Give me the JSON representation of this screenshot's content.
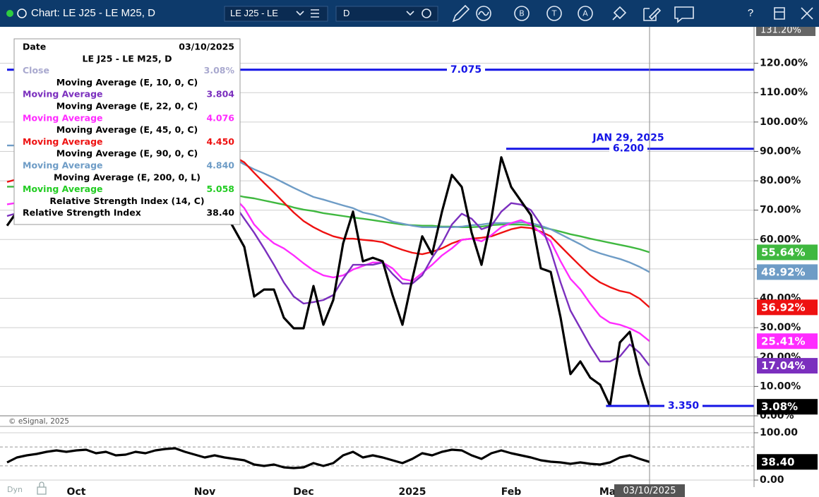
{
  "toolbar": {
    "title": "Chart: LE J25 - LE M25, D",
    "symbol": "LE J25 - LE",
    "interval": "D",
    "buttons": [
      "B",
      "T",
      "A"
    ],
    "help": "?"
  },
  "footer": {
    "mode": "Dyn",
    "copyright": "© eSignal, 2025"
  },
  "data_window": {
    "date_label": "Date",
    "date": "03/10/2025",
    "symbol": "LE J25 - LE M25, D",
    "rows": [
      {
        "label": "Close",
        "value": "3.08%",
        "color": "#a9a9cf"
      },
      {
        "title": "Moving Average (E, 10, 0, C)"
      },
      {
        "label": "Moving Average",
        "value": "3.804",
        "color": "#7b2fbe"
      },
      {
        "title": "Moving Average (E, 22, 0, C)"
      },
      {
        "label": "Moving Average",
        "value": "4.076",
        "color": "#ff2bff"
      },
      {
        "title": "Moving Average (E, 45, 0, C)"
      },
      {
        "label": "Moving Average",
        "value": "4.450",
        "color": "#ee1111"
      },
      {
        "title": "Moving Average (E, 90, 0, C)"
      },
      {
        "label": "Moving Average",
        "value": "4.840",
        "color": "#6e9cc6"
      },
      {
        "title": "Moving Average (E, 200, 0, L)"
      },
      {
        "label": "Moving Average",
        "value": "5.058",
        "color": "#22cc22"
      },
      {
        "title": "Relative Strength Index (14, C)"
      },
      {
        "label": "Relative Strength Index",
        "value": "38.40",
        "color": "#000000"
      }
    ]
  },
  "chart_data": [
    {
      "type": "line",
      "categories": [
        null,
        null,
        null,
        null,
        null,
        null,
        null,
        "Oct",
        null,
        null,
        null,
        null,
        null,
        null,
        null,
        null,
        null,
        null,
        null,
        null,
        "Nov",
        null,
        null,
        null,
        null,
        null,
        null,
        null,
        null,
        null,
        "Dec",
        null,
        null,
        null,
        null,
        null,
        null,
        null,
        null,
        null,
        null,
        "2025",
        null,
        null,
        null,
        null,
        null,
        null,
        null,
        null,
        null,
        "Feb",
        null,
        null,
        null,
        null,
        null,
        null,
        null,
        null,
        null,
        "Mar",
        null,
        null,
        null,
        null
      ],
      "ylim": [
        0,
        131.2
      ],
      "ylim_label": "131.20%",
      "yticks": [
        {
          "value": 0,
          "label": "0.00%"
        },
        {
          "value": 10,
          "label": "10.00%"
        },
        {
          "value": 20,
          "label": "20.00%"
        },
        {
          "value": 30,
          "label": "30.00%"
        },
        {
          "value": 40,
          "label": "40.00%"
        },
        {
          "value": 50,
          "label": "50.00%"
        },
        {
          "value": 60,
          "label": "60.00%"
        },
        {
          "value": 70,
          "label": "70.00%"
        },
        {
          "value": 80,
          "label": "80.00%"
        },
        {
          "value": 90,
          "label": "90.00%"
        },
        {
          "value": 100,
          "label": "100.00%"
        },
        {
          "value": 110,
          "label": "110.00%"
        },
        {
          "value": 120,
          "label": "120.00%"
        }
      ],
      "grid": true,
      "levels": [
        {
          "label": "7.075",
          "value": 117.8,
          "start": 0
        },
        {
          "label": "6.200",
          "value": 90.9,
          "start": 50.5,
          "note": "JAN 29, 2025"
        },
        {
          "label": "3.350",
          "value": 3.37,
          "start": 60.6
        }
      ],
      "level_color": "#1414e6",
      "series": [
        {
          "color": "#3fb83f",
          "last_label": "55.64%",
          "values": [
            78,
            78,
            78,
            78,
            78,
            77.5,
            77.5,
            77.5,
            77,
            77,
            77,
            77,
            76.5,
            76.5,
            76.5,
            76,
            76,
            76,
            75.8,
            75.6,
            75.5,
            75.4,
            75.3,
            75.2,
            74.5,
            74.0,
            73.3,
            72.6,
            71.9,
            70.9,
            70.2,
            69.7,
            69.0,
            68.5,
            68.0,
            67.5,
            67.1,
            66.6,
            66.1,
            65.6,
            65.1,
            64.9,
            64.7,
            64.7,
            64.4,
            64.4,
            64.2,
            64.2,
            64.4,
            64.9,
            65.1,
            65.1,
            65.1,
            64.9,
            64.2,
            63.5,
            62.7,
            61.8,
            61.1,
            60.3,
            59.6,
            58.9,
            58.2,
            57.5,
            56.7,
            55.64
          ]
        },
        {
          "color": "#6e9cc6",
          "last_label": "48.92%",
          "values": [
            92,
            92,
            92,
            92,
            92,
            92,
            91.5,
            91.5,
            91,
            91,
            91,
            90.5,
            90.5,
            90,
            90,
            89.5,
            89.5,
            89,
            89,
            88.5,
            88,
            88,
            87.8,
            87.5,
            85.6,
            83.9,
            82.5,
            81.0,
            79.3,
            77.6,
            76.0,
            74.5,
            73.6,
            72.6,
            71.6,
            70.7,
            69.2,
            68.5,
            67.5,
            66.1,
            65.4,
            64.7,
            64.2,
            64.2,
            64.2,
            64.2,
            64.4,
            64.9,
            65.1,
            65.6,
            65.6,
            65.6,
            65.9,
            65.6,
            64.7,
            63.5,
            61.8,
            60.1,
            58.4,
            56.5,
            55.3,
            54.3,
            53.4,
            52.2,
            50.7,
            48.92
          ]
        },
        {
          "color": "#ee1111",
          "last_label": "36.92%",
          "values": [
            79.6,
            80.5,
            81.5,
            82.5,
            83.5,
            84.5,
            85.5,
            86.5,
            87,
            87.5,
            88,
            88.5,
            89,
            89.5,
            90,
            90,
            90.5,
            90.5,
            90,
            89.5,
            89,
            88.5,
            88.5,
            88.2,
            86.3,
            82.7,
            79.3,
            76.0,
            72.6,
            69.2,
            66.3,
            64.2,
            62.5,
            61.1,
            60.3,
            60.3,
            59.9,
            59.6,
            59.1,
            57.7,
            56.5,
            55.5,
            55.0,
            55.8,
            57.0,
            58.7,
            59.9,
            60.3,
            60.6,
            61.1,
            62.3,
            63.5,
            64.2,
            63.9,
            62.7,
            61.1,
            57.7,
            54.3,
            51.0,
            47.8,
            45.4,
            43.8,
            42.5,
            41.8,
            39.9,
            36.92
          ]
        },
        {
          "color": "#ff2bff",
          "last_label": "25.41%",
          "values": [
            72,
            72.5,
            73,
            73.5,
            74,
            74.5,
            75,
            75.5,
            76,
            76.5,
            77,
            77.5,
            78,
            78,
            78.5,
            78.5,
            78,
            78,
            77.5,
            77,
            76.5,
            76,
            75,
            74.3,
            70.7,
            65.1,
            61.5,
            58.7,
            57.0,
            54.6,
            51.9,
            49.5,
            47.8,
            47.1,
            47.8,
            49.8,
            51.0,
            52.2,
            52.2,
            50.2,
            46.6,
            45.9,
            48.6,
            51.4,
            54.6,
            57.0,
            59.9,
            60.3,
            59.4,
            61.5,
            64.2,
            65.6,
            66.6,
            65.1,
            62.3,
            59.4,
            52.6,
            46.6,
            43.0,
            38.2,
            33.9,
            31.7,
            31.0,
            29.8,
            28.1,
            25.41
          ]
        },
        {
          "color": "#7b2fbe",
          "last_label": "17.04%",
          "values": [
            68,
            69,
            70,
            71,
            72,
            72,
            73,
            73,
            74,
            74,
            75,
            75,
            76,
            76,
            77,
            77,
            77,
            76,
            75,
            75,
            74,
            73,
            72,
            71.9,
            67.1,
            62.3,
            57.0,
            51.4,
            45.4,
            40.6,
            38.2,
            38.7,
            39.4,
            41.1,
            46.6,
            51.4,
            51.4,
            51.4,
            52.2,
            48.3,
            45.0,
            45.0,
            47.8,
            53.8,
            58.7,
            65.1,
            68.8,
            67.1,
            63.5,
            64.7,
            69.5,
            72.4,
            71.9,
            70.0,
            65.1,
            56.3,
            45.4,
            35.8,
            29.8,
            23.8,
            18.5,
            18.5,
            20.2,
            24.3,
            21.4,
            17.04
          ]
        },
        {
          "color": "#000000",
          "last_label": "3.08%",
          "values": [
            64.7,
            69.5,
            71.9,
            74.3,
            71.9,
            76.7,
            73.1,
            79.1,
            75.5,
            81.5,
            77.9,
            83.9,
            80.3,
            85.1,
            81.5,
            83.9,
            79.1,
            81.5,
            75.5,
            77.9,
            73.1,
            74.3,
            69.5,
            63.5,
            57.5,
            40.6,
            43.0,
            43.0,
            33.4,
            29.8,
            29.8,
            44.2,
            31.0,
            39.4,
            58.7,
            69.5,
            52.6,
            53.8,
            52.6,
            41.1,
            31.0,
            46.6,
            61.1,
            55.0,
            69.5,
            82.0,
            77.9,
            62.3,
            51.4,
            67.1,
            88.0,
            77.9,
            73.1,
            68.3,
            50.2,
            49.0,
            33.4,
            14.2,
            18.5,
            13.0,
            10.6,
            3.4,
            25.0,
            28.6,
            14.2,
            3.08
          ]
        }
      ]
    },
    {
      "type": "line",
      "ylim": [
        0,
        100
      ],
      "yticks": [
        {
          "value": 0,
          "label": "0.00"
        },
        {
          "value": 100,
          "label": "100.00"
        }
      ],
      "bands": [
        70,
        30
      ],
      "series": [
        {
          "color": "#000000",
          "last_label": "38.40",
          "values": [
            37.3,
            47.8,
            52.2,
            55.2,
            59.7,
            62.7,
            59.7,
            62.7,
            64.2,
            56.7,
            59.7,
            52.2,
            53.7,
            59.7,
            56.7,
            62.7,
            65.7,
            67.2,
            59.7,
            53.7,
            47.8,
            52.2,
            47.8,
            44.8,
            41.8,
            32.8,
            29.9,
            32.8,
            26.9,
            25.4,
            26.9,
            35.8,
            29.9,
            35.8,
            52.2,
            59.7,
            47.8,
            52.2,
            47.8,
            41.8,
            35.8,
            44.8,
            56.7,
            52.2,
            59.7,
            64.2,
            62.7,
            52.2,
            44.8,
            56.7,
            62.7,
            56.7,
            52.2,
            47.8,
            41.8,
            38.8,
            37.3,
            34.3,
            37.3,
            34.3,
            32.8,
            37.3,
            47.8,
            52.2,
            44.8,
            38.4
          ]
        }
      ]
    }
  ]
}
